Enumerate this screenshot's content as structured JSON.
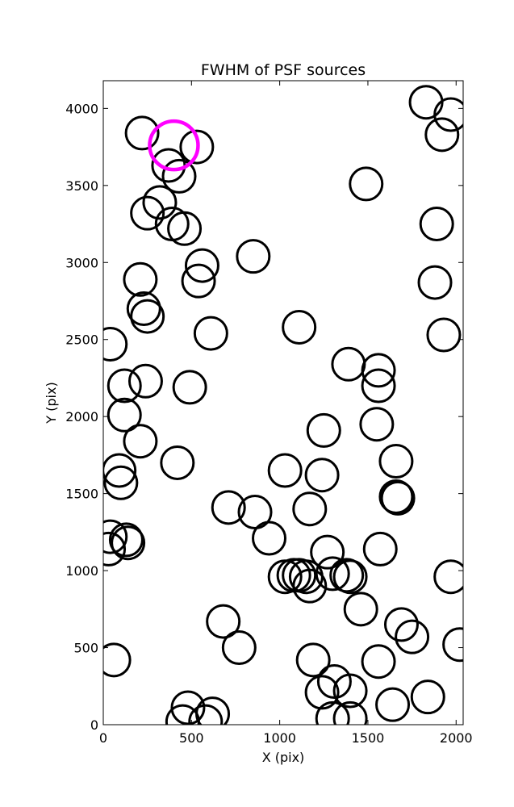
{
  "chart_data": {
    "type": "scatter",
    "title": "FWHM of PSF sources",
    "xlabel": "X (pix)",
    "ylabel": "Y (pix)",
    "xlim": [
      0,
      2040
    ],
    "ylim": [
      0,
      4180
    ],
    "xticks": [
      0,
      500,
      1000,
      1500,
      2000
    ],
    "yticks": [
      0,
      500,
      1000,
      1500,
      2000,
      2500,
      3000,
      3500,
      4000
    ],
    "grid": false,
    "marker": "open-circle",
    "colors": {
      "normal": "#000000",
      "highlight": "#ff00ff"
    },
    "series": [
      {
        "points": [
          [
            220,
            3840
          ],
          [
            370,
            3630
          ],
          [
            430,
            3560
          ],
          [
            530,
            3750
          ],
          [
            320,
            3390
          ],
          [
            250,
            3320
          ],
          [
            390,
            3250
          ],
          [
            460,
            3220
          ],
          [
            560,
            2980
          ],
          [
            540,
            2880
          ],
          [
            210,
            2890
          ],
          [
            230,
            2700
          ],
          [
            250,
            2650
          ],
          [
            610,
            2540
          ],
          [
            40,
            2470
          ],
          [
            850,
            3040
          ],
          [
            1110,
            2580
          ],
          [
            1390,
            2340
          ],
          [
            1560,
            2300
          ],
          [
            1560,
            2200
          ],
          [
            1930,
            2530
          ],
          [
            1880,
            2870
          ],
          [
            1890,
            3250
          ],
          [
            1490,
            3510
          ],
          [
            1830,
            4040
          ],
          [
            1970,
            3960
          ],
          [
            1920,
            3830
          ],
          [
            120,
            2200
          ],
          [
            240,
            2230
          ],
          [
            490,
            2190
          ],
          [
            120,
            2010
          ],
          [
            210,
            1840
          ],
          [
            420,
            1700
          ],
          [
            90,
            1650
          ],
          [
            100,
            1570
          ],
          [
            1250,
            1910
          ],
          [
            1550,
            1950
          ],
          [
            1030,
            1650
          ],
          [
            1240,
            1620
          ],
          [
            1660,
            1710
          ],
          [
            1660,
            1480
          ],
          [
            1670,
            1470
          ],
          [
            710,
            1410
          ],
          [
            860,
            1380
          ],
          [
            1170,
            1400
          ],
          [
            940,
            1210
          ],
          [
            40,
            1220
          ],
          [
            30,
            1140
          ],
          [
            130,
            1200
          ],
          [
            140,
            1180
          ],
          [
            1270,
            1120
          ],
          [
            1570,
            1140
          ],
          [
            1030,
            960
          ],
          [
            1110,
            970
          ],
          [
            1080,
            970
          ],
          [
            1150,
            960
          ],
          [
            1170,
            900
          ],
          [
            1300,
            980
          ],
          [
            1380,
            970
          ],
          [
            1400,
            960
          ],
          [
            1970,
            960
          ],
          [
            1460,
            750
          ],
          [
            1690,
            650
          ],
          [
            1750,
            570
          ],
          [
            680,
            670
          ],
          [
            770,
            500
          ],
          [
            1190,
            420
          ],
          [
            1560,
            410
          ],
          [
            2020,
            520
          ],
          [
            60,
            420
          ],
          [
            1240,
            210
          ],
          [
            1310,
            280
          ],
          [
            1400,
            220
          ],
          [
            1300,
            40
          ],
          [
            1400,
            40
          ],
          [
            1640,
            130
          ],
          [
            1840,
            180
          ],
          [
            480,
            110
          ],
          [
            450,
            20
          ],
          [
            580,
            20
          ],
          [
            620,
            70
          ]
        ]
      },
      {
        "points": [
          [
            400,
            3760
          ]
        ],
        "highlight": true
      }
    ]
  }
}
